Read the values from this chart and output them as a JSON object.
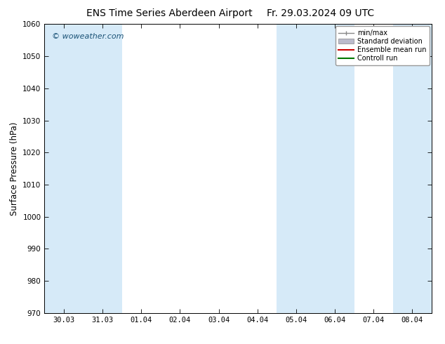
{
  "title_left": "ENS Time Series Aberdeen Airport",
  "title_right": "Fr. 29.03.2024 09 UTC",
  "ylabel": "Surface Pressure (hPa)",
  "ylim": [
    970,
    1060
  ],
  "yticks": [
    970,
    980,
    990,
    1000,
    1010,
    1020,
    1030,
    1040,
    1050,
    1060
  ],
  "xlabels": [
    "30.03",
    "31.03",
    "01.04",
    "02.04",
    "03.04",
    "04.04",
    "05.04",
    "06.04",
    "07.04",
    "08.04"
  ],
  "x_values": [
    0,
    1,
    2,
    3,
    4,
    5,
    6,
    7,
    8,
    9
  ],
  "shaded_bands": [
    {
      "xstart": -0.5,
      "xend": 0.5
    },
    {
      "xstart": 0.5,
      "xend": 1.5
    },
    {
      "xstart": 5.5,
      "xend": 7.5
    },
    {
      "xstart": 8.5,
      "xend": 9.5
    }
  ],
  "shade_color": "#d6eaf8",
  "background_color": "#ffffff",
  "plot_bg_color": "#ffffff",
  "watermark": "© woweather.com",
  "watermark_color": "#1a5276",
  "legend_labels": [
    "min/max",
    "Standard deviation",
    "Ensemble mean run",
    "Controll run"
  ],
  "minmax_color": "#888888",
  "std_color": "#bbbbcc",
  "ens_color": "#cc0000",
  "ctrl_color": "#007700",
  "title_fontsize": 10,
  "tick_fontsize": 7.5,
  "ylabel_fontsize": 8.5,
  "legend_fontsize": 7
}
